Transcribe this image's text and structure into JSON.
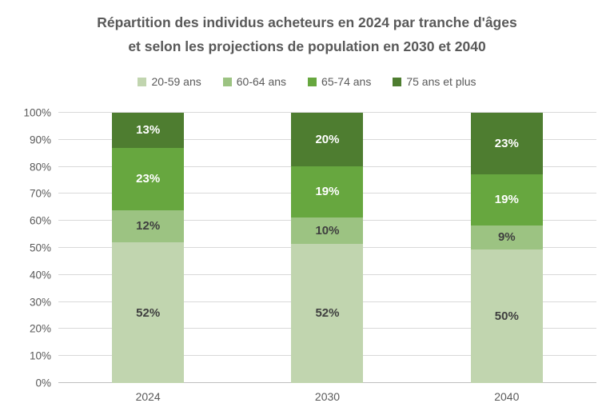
{
  "title": {
    "line1": "Répartition des individus acheteurs en 2024  par tranche d'âges",
    "line2": "et selon les projections de population en 2030 et 2040"
  },
  "colors": {
    "title_text": "#595959",
    "axis_text": "#595959",
    "gridline": "#D9D9D9",
    "axis_line": "#BFBFBF",
    "dark_label": "#3F3F3F",
    "light_label": "#FFFFFF",
    "background": "#FFFFFF"
  },
  "chart_data": {
    "type": "bar",
    "stacked": true,
    "title": "Répartition des individus acheteurs en 2024  par tranche d'âges et selon les projections de population en 2030 et 2040",
    "categories": [
      "2024",
      "2030",
      "2040"
    ],
    "series": [
      {
        "name": "20-59 ans",
        "color": "#C1D5AF",
        "label_color": "#3F3F3F",
        "values": [
          52,
          52,
          50
        ]
      },
      {
        "name": "60-64 ans",
        "color": "#9CC382",
        "label_color": "#3F3F3F",
        "values": [
          12,
          10,
          9
        ]
      },
      {
        "name": "65-74 ans",
        "color": "#67A73F",
        "label_color": "#FFFFFF",
        "values": [
          23,
          19,
          19
        ]
      },
      {
        "name": "75 ans et plus",
        "color": "#4E7D30",
        "label_color": "#FFFFFF",
        "values": [
          13,
          20,
          23
        ]
      }
    ],
    "data_label_suffix": "%",
    "xlabel": "",
    "ylabel": "",
    "ylim": [
      0,
      100
    ],
    "y_ticks": [
      "0%",
      "10%",
      "20%",
      "30%",
      "40%",
      "50%",
      "60%",
      "70%",
      "80%",
      "90%",
      "100%"
    ],
    "grid": true,
    "legend_position": "top",
    "legend": [
      "20-59 ans",
      "60-64 ans",
      "65-74 ans",
      "75 ans et plus"
    ]
  }
}
